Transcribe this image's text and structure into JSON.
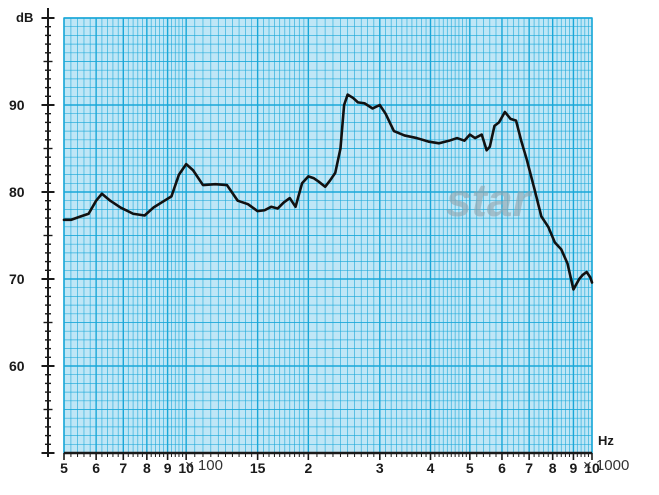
{
  "chart_data": {
    "type": "line",
    "title": "",
    "xlabel": "Hz",
    "ylabel": "dB",
    "x_scale": "log",
    "xlim": [
      500,
      10000
    ],
    "ylim": [
      50,
      100
    ],
    "grid": true,
    "x_tick_labels": [
      {
        "value": 500,
        "label": "5"
      },
      {
        "value": 600,
        "label": "6"
      },
      {
        "value": 700,
        "label": "7"
      },
      {
        "value": 800,
        "label": "8"
      },
      {
        "value": 900,
        "label": "9"
      },
      {
        "value": 1000,
        "label": "10"
      },
      {
        "value": 1500,
        "label": "15"
      },
      {
        "value": 2000,
        "label": "2"
      },
      {
        "value": 3000,
        "label": "3"
      },
      {
        "value": 4000,
        "label": "4"
      },
      {
        "value": 5000,
        "label": "5"
      },
      {
        "value": 6000,
        "label": "6"
      },
      {
        "value": 7000,
        "label": "7"
      },
      {
        "value": 8000,
        "label": "8"
      },
      {
        "value": 9000,
        "label": "9"
      },
      {
        "value": 10000,
        "label": "10"
      }
    ],
    "x_multipliers": [
      "× 100",
      "× 1000"
    ],
    "y_ticks": [
      60,
      70,
      80,
      90
    ],
    "watermark": "star",
    "colors": {
      "grid": "#19a7d8",
      "background": "#bfe6f6",
      "line": "#111111",
      "watermark": "#8fa3ae"
    },
    "series": [
      {
        "x": [
          500,
          520,
          550,
          575,
          600,
          620,
          650,
          690,
          740,
          790,
          830,
          870,
          920,
          960,
          1000,
          1040,
          1100,
          1180,
          1260,
          1340,
          1420,
          1500,
          1560,
          1620,
          1680,
          1740,
          1800,
          1860,
          1930,
          2000,
          2060,
          2120,
          2200,
          2260,
          2330,
          2400,
          2450,
          2500,
          2540,
          2580,
          2650,
          2750,
          2880,
          3000,
          3100,
          3250,
          3450,
          3700,
          3950,
          4200,
          4450,
          4650,
          4850,
          5000,
          5150,
          5350,
          5500,
          5600,
          5750,
          5900,
          6100,
          6300,
          6500,
          6700,
          6900,
          7200,
          7500,
          7800,
          8100,
          8400,
          8700,
          9000,
          9300,
          9500,
          9700,
          9900,
          10000
        ],
        "y": [
          76.8,
          76.8,
          77.2,
          77.5,
          79.0,
          79.8,
          79.0,
          78.2,
          77.5,
          77.3,
          78.2,
          78.8,
          79.5,
          82.0,
          83.2,
          82.5,
          80.8,
          80.9,
          80.8,
          79.0,
          78.6,
          77.8,
          77.9,
          78.3,
          78.1,
          78.8,
          79.3,
          78.3,
          81.0,
          81.8,
          81.6,
          81.2,
          80.6,
          81.3,
          82.2,
          85.0,
          90.0,
          91.2,
          91.0,
          90.8,
          90.3,
          90.2,
          89.6,
          90.0,
          89.0,
          87.0,
          86.5,
          86.2,
          85.8,
          85.6,
          85.9,
          86.2,
          85.9,
          86.6,
          86.2,
          86.6,
          84.8,
          85.2,
          87.6,
          88.0,
          89.2,
          88.4,
          88.2,
          85.8,
          83.8,
          80.5,
          77.2,
          76.0,
          74.2,
          73.4,
          71.8,
          68.8,
          70.0,
          70.5,
          70.8,
          70.2,
          69.6
        ]
      }
    ]
  }
}
